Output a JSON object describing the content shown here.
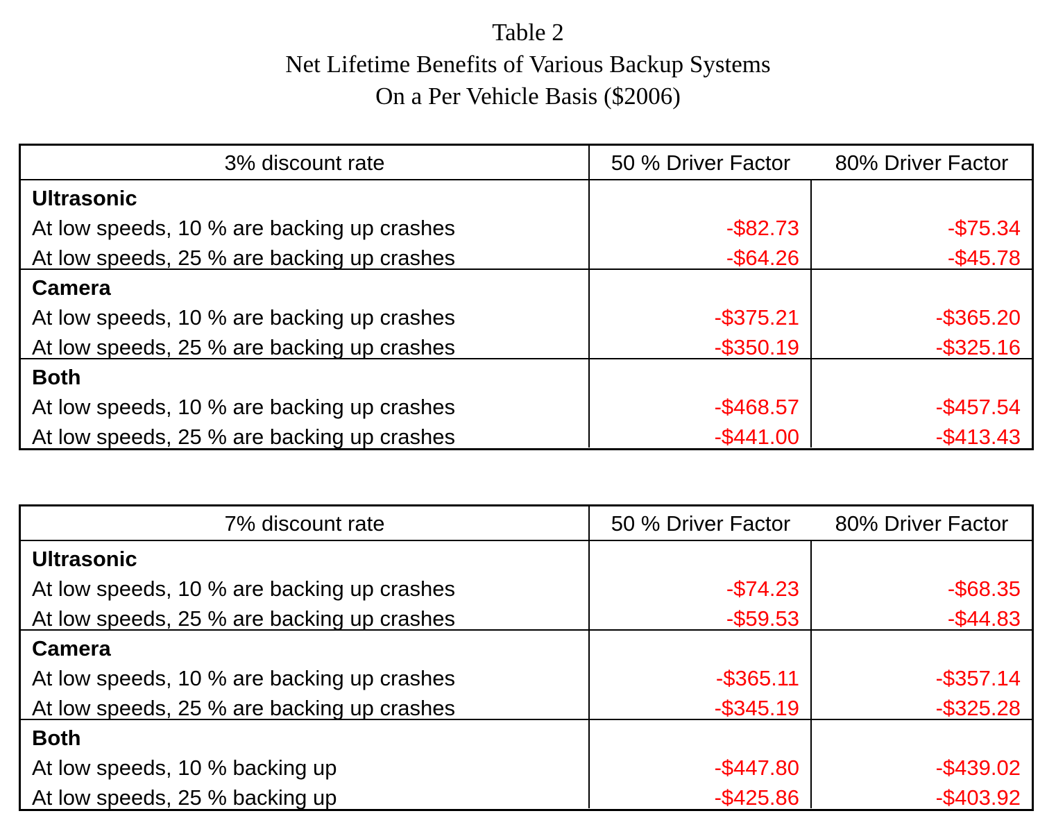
{
  "title": {
    "line1": "Table 2",
    "line2": "Net Lifetime Benefits of Various Backup Systems",
    "line3": "On a Per Vehicle Basis ($2006)"
  },
  "tables": [
    {
      "header": [
        "3% discount rate",
        "50 % Driver Factor",
        "80% Driver Factor"
      ],
      "groups": [
        {
          "name": "Ultrasonic",
          "rows": [
            {
              "label": "At low speeds, 10 % are backing up crashes",
              "v50": "-$82.73",
              "v80": "-$75.34"
            },
            {
              "label": "At low speeds, 25 % are backing up crashes",
              "v50": "-$64.26",
              "v80": "-$45.78"
            }
          ]
        },
        {
          "name": "Camera",
          "rows": [
            {
              "label": "At low speeds, 10 % are backing up crashes",
              "v50": "-$375.21",
              "v80": "-$365.20"
            },
            {
              "label": "At low speeds, 25 % are backing up crashes",
              "v50": "-$350.19",
              "v80": "-$325.16"
            }
          ]
        },
        {
          "name": "Both",
          "rows": [
            {
              "label": "At low speeds, 10 % are backing up crashes",
              "v50": "-$468.57",
              "v80": "-$457.54"
            },
            {
              "label": "At low speeds, 25 % are backing up crashes",
              "v50": "-$441.00",
              "v80": "-$413.43"
            }
          ]
        }
      ]
    },
    {
      "header": [
        "7% discount rate",
        "50 % Driver Factor",
        "80% Driver Factor"
      ],
      "groups": [
        {
          "name": "Ultrasonic",
          "rows": [
            {
              "label": "At low speeds, 10 % are backing up crashes",
              "v50": "-$74.23",
              "v80": "-$68.35"
            },
            {
              "label": "At low speeds, 25 % are backing up crashes",
              "v50": "-$59.53",
              "v80": "-$44.83"
            }
          ]
        },
        {
          "name": "Camera",
          "rows": [
            {
              "label": "At low speeds, 10 % are backing up crashes",
              "v50": "-$365.11",
              "v80": "-$357.14"
            },
            {
              "label": "At low speeds, 25 % are backing up crashes",
              "v50": "-$345.19",
              "v80": "-$325.28"
            }
          ]
        },
        {
          "name": "Both",
          "rows": [
            {
              "label": "At low speeds, 10 % backing up",
              "v50": "-$447.80",
              "v80": "-$439.02"
            },
            {
              "label": "At low speeds, 25 % backing up",
              "v50": "-$425.86",
              "v80": "-$403.92"
            }
          ]
        }
      ]
    }
  ]
}
